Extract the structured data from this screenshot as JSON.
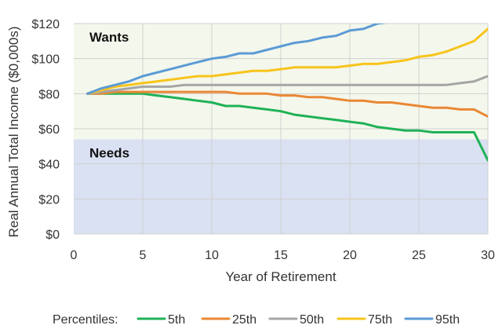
{
  "chart_data": {
    "type": "line",
    "xlabel": "Year of Retirement",
    "ylabel": "Real Annual Total Income ($0,000s)",
    "xlim": [
      0,
      30
    ],
    "ylim": [
      0,
      120
    ],
    "x_ticks": [
      "0",
      "5",
      "10",
      "15",
      "20",
      "25",
      "30"
    ],
    "x_tick_values": [
      0,
      5,
      10,
      15,
      20,
      25,
      30
    ],
    "y_ticks": [
      "$0",
      "$20",
      "$40",
      "$60",
      "$80",
      "$100",
      "$120"
    ],
    "y_tick_values": [
      0,
      20,
      40,
      60,
      80,
      100,
      120
    ],
    "grid": true,
    "regions": [
      {
        "label": "Needs",
        "y_from": 0,
        "y_to": 54,
        "color": "#d9e1f2"
      },
      {
        "label": "Wants",
        "y_from": 54,
        "y_to": 120,
        "color": "#f4f7ec"
      }
    ],
    "legend_title": "Percentiles:",
    "legend_position": "bottom",
    "x": [
      1,
      2,
      3,
      4,
      5,
      6,
      7,
      8,
      9,
      10,
      11,
      12,
      13,
      14,
      15,
      16,
      17,
      18,
      19,
      20,
      21,
      22,
      23,
      24,
      25,
      26,
      27,
      28,
      29,
      30
    ],
    "series": [
      {
        "name": "5th",
        "color": "#1fb257",
        "values": [
          80,
          80,
          80,
          80,
          80,
          79,
          78,
          77,
          76,
          75,
          73,
          73,
          72,
          71,
          70,
          68,
          67,
          66,
          65,
          64,
          63,
          61,
          60,
          59,
          59,
          58,
          58,
          58,
          58,
          42
        ]
      },
      {
        "name": "25th",
        "color": "#e98835",
        "values": [
          80,
          80,
          81,
          81,
          81,
          81,
          81,
          81,
          81,
          81,
          81,
          80,
          80,
          80,
          79,
          79,
          78,
          78,
          77,
          76,
          76,
          75,
          75,
          74,
          73,
          72,
          72,
          71,
          71,
          67
        ]
      },
      {
        "name": "50th",
        "color": "#a5a5a5",
        "values": [
          80,
          81,
          82,
          83,
          84,
          84,
          84,
          85,
          85,
          85,
          85,
          85,
          85,
          85,
          85,
          85,
          85,
          85,
          85,
          85,
          85,
          85,
          85,
          85,
          85,
          85,
          85,
          86,
          87,
          90
        ]
      },
      {
        "name": "75th",
        "color": "#f7c41b",
        "values": [
          80,
          82,
          84,
          85,
          86,
          87,
          88,
          89,
          90,
          90,
          91,
          92,
          93,
          93,
          94,
          95,
          95,
          95,
          95,
          96,
          97,
          97,
          98,
          99,
          101,
          102,
          104,
          107,
          110,
          117
        ]
      },
      {
        "name": "95th",
        "color": "#5b9bd5",
        "values": [
          80,
          83,
          85,
          87,
          90,
          92,
          94,
          96,
          98,
          100,
          101,
          103,
          103,
          105,
          107,
          109,
          110,
          112,
          113,
          116,
          117,
          120,
          121,
          122,
          122,
          122,
          122,
          122,
          122,
          122
        ]
      }
    ]
  }
}
